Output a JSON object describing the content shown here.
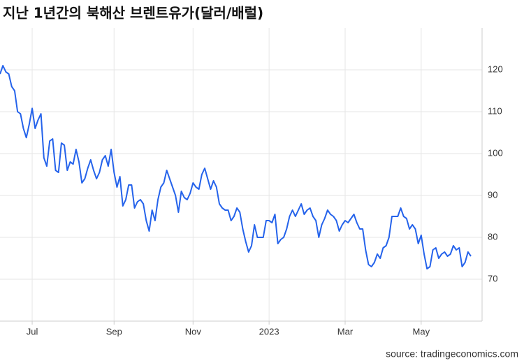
{
  "chart_data": {
    "type": "line",
    "title": "지난 1년간의 북해산 브렌트유가(달러/배럴)",
    "source": "source: tradingeconomics.com",
    "categories": [
      null,
      null,
      null,
      null,
      null,
      null,
      null,
      null,
      null,
      null,
      null,
      "Jul",
      null,
      null,
      null,
      null,
      null,
      null,
      null,
      null,
      null,
      null,
      null,
      null,
      null,
      null,
      null,
      null,
      null,
      null,
      null,
      null,
      null,
      null,
      null,
      null,
      null,
      null,
      null,
      "Sep",
      null,
      null,
      null,
      null,
      null,
      null,
      null,
      null,
      null,
      null,
      null,
      null,
      null,
      null,
      null,
      null,
      null,
      null,
      null,
      null,
      null,
      null,
      null,
      null,
      null,
      null,
      "Nov",
      null,
      null,
      null,
      null,
      null,
      null,
      null,
      null,
      null,
      null,
      null,
      null,
      null,
      null,
      null,
      null,
      null,
      null,
      null,
      null,
      null,
      null,
      null,
      null,
      null,
      "2023",
      null,
      null,
      null,
      null,
      null,
      null,
      null,
      null,
      null,
      null,
      null,
      null,
      null,
      null,
      null,
      null,
      null,
      null,
      null,
      null,
      null,
      null,
      null,
      null,
      null,
      "Mar",
      null,
      null,
      null,
      null,
      null,
      null,
      null,
      null,
      null,
      null,
      null,
      null,
      null,
      null,
      null,
      null,
      null,
      null,
      null,
      null,
      null,
      null,
      null,
      null,
      null,
      "May",
      null,
      null,
      null,
      null,
      null,
      null,
      null,
      null,
      null,
      null,
      null,
      null,
      null,
      null,
      null,
      null,
      null
    ],
    "series": [
      {
        "name": "Brent",
        "color": "#2563eb",
        "values": [
          119,
          121,
          119.5,
          119,
          116,
          115,
          110,
          109.5,
          106,
          103.8,
          107,
          110.8,
          106,
          108,
          109.5,
          99,
          97,
          103,
          103.5,
          96,
          95.5,
          102.5,
          102,
          96,
          98,
          97.5,
          101,
          98,
          93,
          94,
          96.5,
          98.5,
          96,
          94,
          95.5,
          98.5,
          99.5,
          97,
          101,
          95.5,
          92,
          94.5,
          87.5,
          89,
          92.5,
          92.5,
          87,
          88.5,
          89,
          88,
          84,
          81.5,
          86.5,
          84,
          89,
          92,
          93,
          96,
          94,
          92,
          90,
          86,
          91,
          89.5,
          89,
          90.5,
          93,
          92,
          91.5,
          95,
          96.5,
          94,
          91.5,
          93.5,
          92,
          88,
          87,
          86.5,
          86.5,
          84,
          85,
          87,
          86,
          82,
          79,
          76.5,
          78,
          83,
          80,
          80,
          80,
          84,
          84,
          83.5,
          85.5,
          78.5,
          79.5,
          80,
          82,
          85,
          86.5,
          85,
          86.5,
          88,
          85.5,
          86.5,
          87,
          85,
          84,
          80,
          83,
          84.5,
          86.5,
          85.5,
          85,
          84,
          81.5,
          83,
          84,
          83.5,
          84.5,
          85.5,
          83.5,
          82,
          82,
          77,
          73.5,
          73,
          74,
          76,
          75,
          77.5,
          78,
          80,
          85,
          85,
          85,
          87,
          85,
          84.5,
          82,
          83,
          82,
          78.5,
          80.5,
          76,
          72.5,
          73,
          77,
          77.5,
          75,
          76,
          76.5,
          75.5,
          76,
          78,
          77,
          77.5,
          73,
          74,
          76.5,
          75.5
        ]
      }
    ],
    "ylim": [
      60,
      130
    ],
    "yticks": [
      70,
      80,
      90,
      100,
      110,
      120
    ],
    "grid": true
  }
}
